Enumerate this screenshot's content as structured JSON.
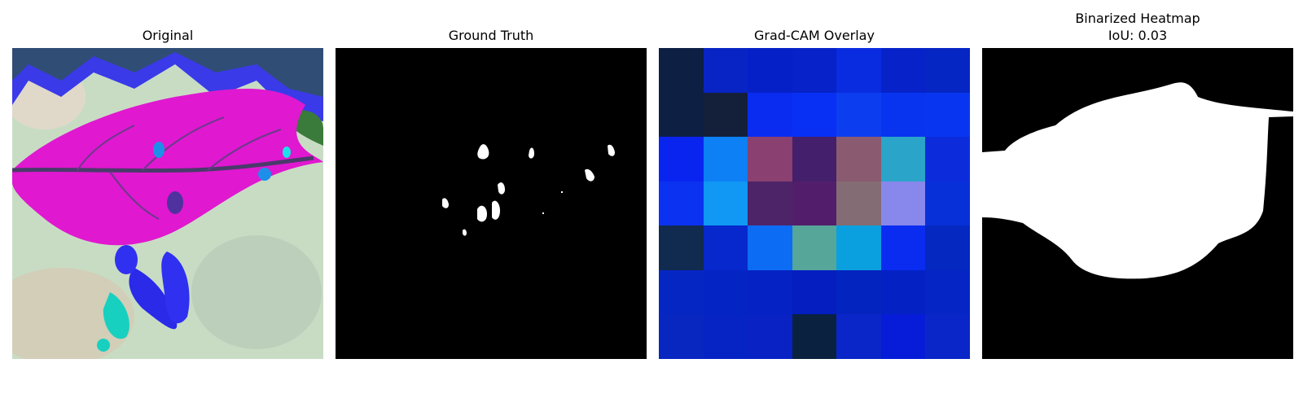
{
  "panels": [
    {
      "title": "Original"
    },
    {
      "title": "Ground Truth"
    },
    {
      "title": "Grad-CAM Overlay"
    },
    {
      "title": "Binarized Heatmap",
      "subtitle": "IoU: 0.03"
    }
  ],
  "gradcam_grid": [
    [
      "#0e1f44",
      "#0824c4",
      "#0620c8",
      "#0622c8",
      "#0a2ce0",
      "#0622c8",
      "#0626c4"
    ],
    [
      "#0e1f44",
      "#14203a",
      "#0a2cf0",
      "#0830f4",
      "#0c3ef0",
      "#0834f0",
      "#0836f0"
    ],
    [
      "#0a24f0",
      "#0c80f4",
      "#8a4070",
      "#44206c",
      "#8a5a70",
      "#2aa4c8",
      "#0c2cdc"
    ],
    [
      "#0a32f0",
      "#1098f4",
      "#4e2468",
      "#521e6c",
      "#846c74",
      "#8888ec",
      "#0830d8"
    ],
    [
      "#102a50",
      "#0628cc",
      "#0c6cf4",
      "#56a69a",
      "#0aa0e0",
      "#0a2cf0",
      "#0428c0"
    ],
    [
      "#0626c4",
      "#0524c4",
      "#0522c4",
      "#041ec0",
      "#0424c0",
      "#0422c4",
      "#0526c4"
    ],
    [
      "#0826c0",
      "#0624c4",
      "#0822c4",
      "#0a2240",
      "#0a26c8",
      "#061cd8",
      "#0a26c8"
    ]
  ]
}
